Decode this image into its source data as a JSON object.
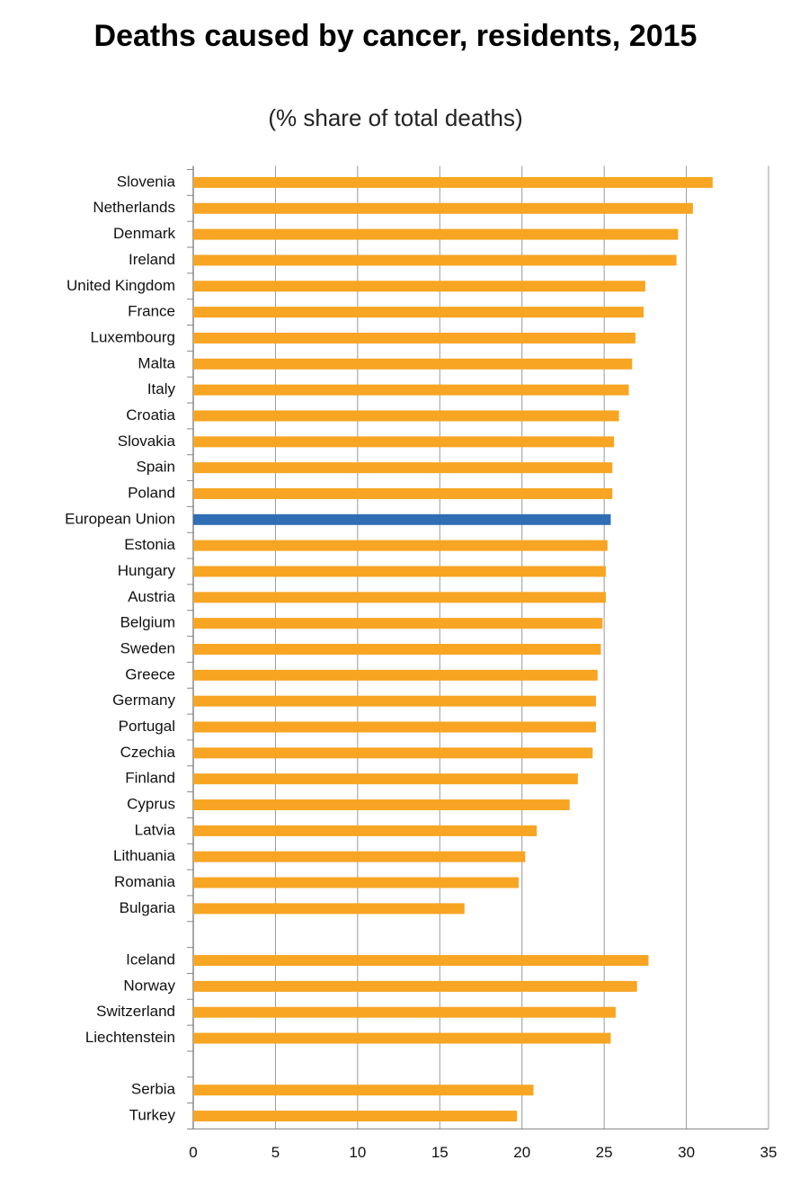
{
  "chart_data": {
    "type": "hbar",
    "title": "Deaths caused by cancer, residents, 2015",
    "subtitle": "(% share of total deaths)",
    "categories": [
      "Slovenia",
      "Netherlands",
      "Denmark",
      "Ireland",
      "United Kingdom",
      "France",
      "Luxembourg",
      "Malta",
      "Italy",
      "Croatia",
      "Slovakia",
      "Spain",
      "Poland",
      "European Union",
      "Estonia",
      "Hungary",
      "Austria",
      "Belgium",
      "Sweden",
      "Greece",
      "Germany",
      "Portugal",
      "Czechia",
      "Finland",
      "Cyprus",
      "Latvia",
      "Lithuania",
      "Romania",
      "Bulgaria",
      null,
      "Iceland",
      "Norway",
      "Switzerland",
      "Liechtenstein",
      null,
      "Serbia",
      "Turkey"
    ],
    "values": [
      31.6,
      30.4,
      29.5,
      29.4,
      27.5,
      27.4,
      26.9,
      26.7,
      26.5,
      25.9,
      25.6,
      25.5,
      25.5,
      25.4,
      25.2,
      25.1,
      25.1,
      24.9,
      24.8,
      24.6,
      24.5,
      24.5,
      24.3,
      23.4,
      22.9,
      20.9,
      20.2,
      19.8,
      16.5,
      null,
      27.7,
      27.0,
      25.7,
      25.4,
      null,
      20.7,
      19.7
    ],
    "colors": [
      "#f7a522",
      "#f7a522",
      "#f7a522",
      "#f7a522",
      "#f7a522",
      "#f7a522",
      "#f7a522",
      "#f7a522",
      "#f7a522",
      "#f7a522",
      "#f7a522",
      "#f7a522",
      "#f7a522",
      "#2f6db5",
      "#f7a522",
      "#f7a522",
      "#f7a522",
      "#f7a522",
      "#f7a522",
      "#f7a522",
      "#f7a522",
      "#f7a522",
      "#f7a522",
      "#f7a522",
      "#f7a522",
      "#f7a522",
      "#f7a522",
      "#f7a522",
      "#f7a522",
      null,
      "#f7a522",
      "#f7a522",
      "#f7a522",
      "#f7a522",
      null,
      "#f7a522",
      "#f7a522"
    ],
    "xlim": [
      0,
      35
    ],
    "xticks": [
      0,
      5,
      10,
      15,
      20,
      25,
      30,
      35
    ],
    "grid": true
  }
}
